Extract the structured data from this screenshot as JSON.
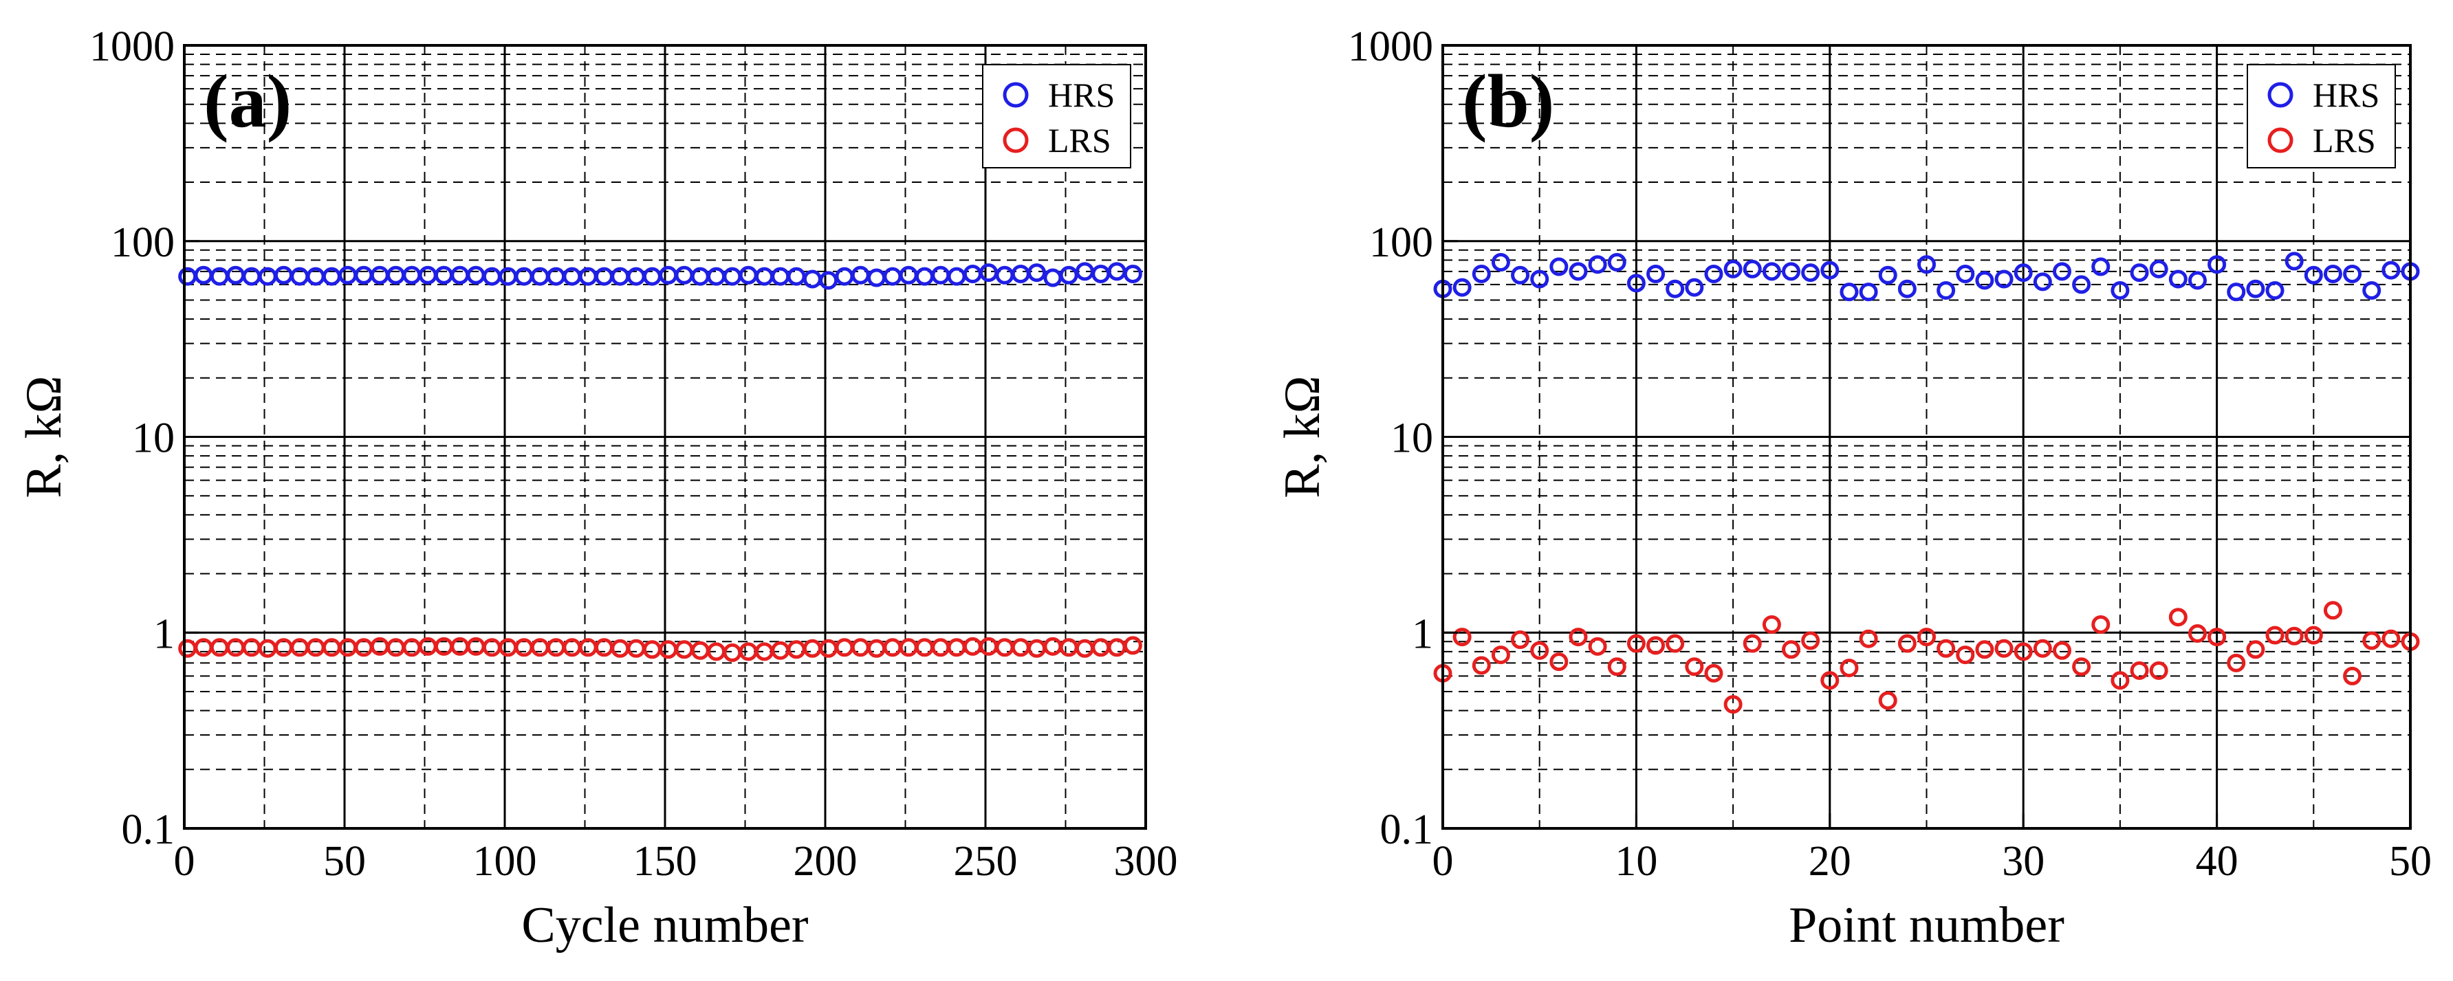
{
  "chart_data": [
    {
      "type": "scatter",
      "panel_label": "(a)",
      "xlabel": "Cycle number",
      "ylabel": "R, kΩ",
      "xlim": [
        0,
        300
      ],
      "ylim": [
        0.1,
        1000
      ],
      "yscale": "log",
      "grid": true,
      "x_ticks": [
        0,
        50,
        100,
        150,
        200,
        250,
        300
      ],
      "x_tick_labels": [
        "0",
        "50",
        "100",
        "150",
        "200",
        "250",
        "300"
      ],
      "y_ticks": [
        0.1,
        1,
        10,
        100,
        1000
      ],
      "y_tick_labels": [
        "0.1",
        "1",
        "10",
        "100",
        "1000"
      ],
      "legend": {
        "placement": "top-right",
        "entries": [
          "HRS",
          "LRS"
        ]
      },
      "series": [
        {
          "name": "HRS",
          "color": "#1f1fe6",
          "x": [
            1,
            6,
            11,
            16,
            21,
            26,
            31,
            36,
            41,
            46,
            51,
            56,
            61,
            66,
            71,
            76,
            81,
            86,
            91,
            96,
            101,
            106,
            111,
            116,
            121,
            126,
            131,
            136,
            141,
            146,
            151,
            156,
            161,
            166,
            171,
            176,
            181,
            186,
            191,
            196,
            201,
            206,
            211,
            216,
            221,
            226,
            231,
            236,
            241,
            246,
            251,
            256,
            261,
            266,
            271,
            276,
            281,
            286,
            291,
            296
          ],
          "values": [
            66,
            67,
            66,
            67,
            66,
            66,
            67,
            66,
            66,
            66,
            67,
            67,
            67,
            67,
            67,
            67,
            67,
            67,
            67,
            66,
            66,
            66,
            66,
            66,
            66,
            66,
            66,
            66,
            66,
            66,
            67,
            67,
            66,
            66,
            66,
            67,
            66,
            66,
            66,
            64,
            63,
            66,
            67,
            65,
            66,
            67,
            66,
            67,
            66,
            68,
            69,
            67,
            68,
            69,
            65,
            67,
            70,
            68,
            70,
            68
          ]
        },
        {
          "name": "LRS",
          "color": "#e61f1f",
          "x": [
            1,
            6,
            11,
            16,
            21,
            26,
            31,
            36,
            41,
            46,
            51,
            56,
            61,
            66,
            71,
            76,
            81,
            86,
            91,
            96,
            101,
            106,
            111,
            116,
            121,
            126,
            131,
            136,
            141,
            146,
            151,
            156,
            161,
            166,
            171,
            176,
            181,
            186,
            191,
            196,
            201,
            206,
            211,
            216,
            221,
            226,
            231,
            236,
            241,
            246,
            251,
            256,
            261,
            266,
            271,
            276,
            281,
            286,
            291,
            296
          ],
          "values": [
            0.83,
            0.84,
            0.84,
            0.84,
            0.84,
            0.83,
            0.84,
            0.84,
            0.84,
            0.84,
            0.84,
            0.84,
            0.85,
            0.84,
            0.84,
            0.85,
            0.85,
            0.85,
            0.85,
            0.84,
            0.84,
            0.84,
            0.84,
            0.84,
            0.84,
            0.84,
            0.84,
            0.83,
            0.83,
            0.82,
            0.82,
            0.82,
            0.81,
            0.8,
            0.79,
            0.8,
            0.8,
            0.81,
            0.82,
            0.83,
            0.83,
            0.84,
            0.84,
            0.83,
            0.84,
            0.84,
            0.84,
            0.84,
            0.84,
            0.85,
            0.85,
            0.84,
            0.84,
            0.83,
            0.85,
            0.84,
            0.83,
            0.84,
            0.84,
            0.86
          ]
        }
      ]
    },
    {
      "type": "scatter",
      "panel_label": "(b)",
      "xlabel": "Point number",
      "ylabel": "R, kΩ",
      "xlim": [
        0,
        50
      ],
      "ylim": [
        0.1,
        1000
      ],
      "yscale": "log",
      "grid": true,
      "x_ticks": [
        0,
        10,
        20,
        30,
        40,
        50
      ],
      "x_tick_labels": [
        "0",
        "10",
        "20",
        "30",
        "40",
        "50"
      ],
      "y_ticks": [
        0.1,
        1,
        10,
        100,
        1000
      ],
      "y_tick_labels": [
        "0.1",
        "1",
        "10",
        "100",
        "1000"
      ],
      "legend": {
        "placement": "top-right",
        "entries": [
          "HRS",
          "LRS"
        ]
      },
      "series": [
        {
          "name": "HRS",
          "color": "#1f1fe6",
          "x": [
            0,
            1,
            2,
            3,
            4,
            5,
            6,
            7,
            8,
            9,
            10,
            11,
            12,
            13,
            14,
            15,
            16,
            17,
            18,
            19,
            20,
            21,
            22,
            23,
            24,
            25,
            26,
            27,
            28,
            29,
            30,
            31,
            32,
            33,
            34,
            35,
            36,
            37,
            38,
            39,
            40,
            41,
            42,
            43,
            44,
            45,
            46,
            47,
            48,
            49,
            50
          ],
          "values": [
            57,
            58,
            68,
            78,
            67,
            64,
            74,
            70,
            76,
            78,
            61,
            68,
            57,
            58,
            68,
            72,
            72,
            70,
            70,
            69,
            71,
            55,
            55,
            67,
            57,
            76,
            56,
            68,
            63,
            64,
            69,
            62,
            70,
            60,
            74,
            56,
            69,
            72,
            64,
            63,
            76,
            55,
            57,
            56,
            79,
            67,
            68,
            68,
            56,
            71,
            70
          ]
        },
        {
          "name": "LRS",
          "color": "#e61f1f",
          "x": [
            0,
            1,
            2,
            3,
            4,
            5,
            6,
            7,
            8,
            9,
            10,
            11,
            12,
            13,
            14,
            15,
            16,
            17,
            18,
            19,
            20,
            21,
            22,
            23,
            24,
            25,
            26,
            27,
            28,
            29,
            30,
            31,
            32,
            33,
            34,
            35,
            36,
            37,
            38,
            39,
            40,
            41,
            42,
            43,
            44,
            45,
            46,
            47,
            48,
            49,
            50
          ],
          "values": [
            0.62,
            0.95,
            0.68,
            0.77,
            0.92,
            0.81,
            0.71,
            0.95,
            0.85,
            0.67,
            0.88,
            0.86,
            0.88,
            0.67,
            0.62,
            0.43,
            0.88,
            1.1,
            0.82,
            0.91,
            0.57,
            0.66,
            0.93,
            0.45,
            0.88,
            0.95,
            0.83,
            0.77,
            0.82,
            0.83,
            0.8,
            0.83,
            0.81,
            0.67,
            1.1,
            0.57,
            0.64,
            0.64,
            1.2,
            0.99,
            0.95,
            0.7,
            0.82,
            0.97,
            0.96,
            0.97,
            1.3,
            0.6,
            0.91,
            0.93,
            0.9
          ]
        }
      ]
    }
  ]
}
